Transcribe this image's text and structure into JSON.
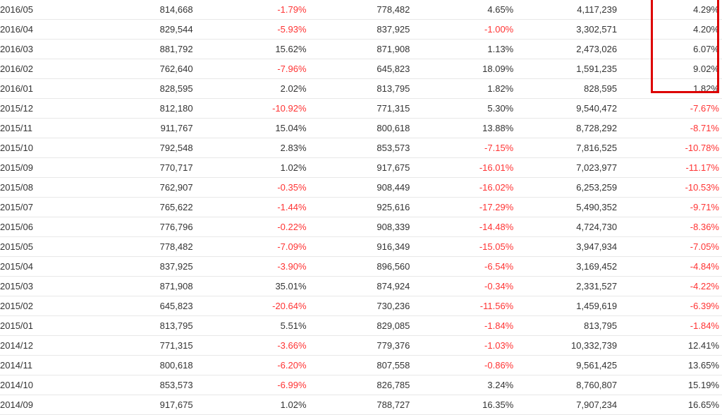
{
  "table": {
    "rows": [
      {
        "period": "2016/05",
        "v1": "814,668",
        "p1": "-1.79%",
        "v2": "778,482",
        "p2": "4.65%",
        "cum": "4,117,239",
        "p3": "4.29%"
      },
      {
        "period": "2016/04",
        "v1": "829,544",
        "p1": "-5.93%",
        "v2": "837,925",
        "p2": "-1.00%",
        "cum": "3,302,571",
        "p3": "4.20%"
      },
      {
        "period": "2016/03",
        "v1": "881,792",
        "p1": "15.62%",
        "v2": "871,908",
        "p2": "1.13%",
        "cum": "2,473,026",
        "p3": "6.07%"
      },
      {
        "period": "2016/02",
        "v1": "762,640",
        "p1": "-7.96%",
        "v2": "645,823",
        "p2": "18.09%",
        "cum": "1,591,235",
        "p3": "9.02%"
      },
      {
        "period": "2016/01",
        "v1": "828,595",
        "p1": "2.02%",
        "v2": "813,795",
        "p2": "1.82%",
        "cum": "828,595",
        "p3": "1.82%"
      },
      {
        "period": "2015/12",
        "v1": "812,180",
        "p1": "-10.92%",
        "v2": "771,315",
        "p2": "5.30%",
        "cum": "9,540,472",
        "p3": "-7.67%"
      },
      {
        "period": "2015/11",
        "v1": "911,767",
        "p1": "15.04%",
        "v2": "800,618",
        "p2": "13.88%",
        "cum": "8,728,292",
        "p3": "-8.71%"
      },
      {
        "period": "2015/10",
        "v1": "792,548",
        "p1": "2.83%",
        "v2": "853,573",
        "p2": "-7.15%",
        "cum": "7,816,525",
        "p3": "-10.78%"
      },
      {
        "period": "2015/09",
        "v1": "770,717",
        "p1": "1.02%",
        "v2": "917,675",
        "p2": "-16.01%",
        "cum": "7,023,977",
        "p3": "-11.17%"
      },
      {
        "period": "2015/08",
        "v1": "762,907",
        "p1": "-0.35%",
        "v2": "908,449",
        "p2": "-16.02%",
        "cum": "6,253,259",
        "p3": "-10.53%"
      },
      {
        "period": "2015/07",
        "v1": "765,622",
        "p1": "-1.44%",
        "v2": "925,616",
        "p2": "-17.29%",
        "cum": "5,490,352",
        "p3": "-9.71%"
      },
      {
        "period": "2015/06",
        "v1": "776,796",
        "p1": "-0.22%",
        "v2": "908,339",
        "p2": "-14.48%",
        "cum": "4,724,730",
        "p3": "-8.36%"
      },
      {
        "period": "2015/05",
        "v1": "778,482",
        "p1": "-7.09%",
        "v2": "916,349",
        "p2": "-15.05%",
        "cum": "3,947,934",
        "p3": "-7.05%"
      },
      {
        "period": "2015/04",
        "v1": "837,925",
        "p1": "-3.90%",
        "v2": "896,560",
        "p2": "-6.54%",
        "cum": "3,169,452",
        "p3": "-4.84%"
      },
      {
        "period": "2015/03",
        "v1": "871,908",
        "p1": "35.01%",
        "v2": "874,924",
        "p2": "-0.34%",
        "cum": "2,331,527",
        "p3": "-4.22%"
      },
      {
        "period": "2015/02",
        "v1": "645,823",
        "p1": "-20.64%",
        "v2": "730,236",
        "p2": "-11.56%",
        "cum": "1,459,619",
        "p3": "-6.39%"
      },
      {
        "period": "2015/01",
        "v1": "813,795",
        "p1": "5.51%",
        "v2": "829,085",
        "p2": "-1.84%",
        "cum": "813,795",
        "p3": "-1.84%"
      },
      {
        "period": "2014/12",
        "v1": "771,315",
        "p1": "-3.66%",
        "v2": "779,376",
        "p2": "-1.03%",
        "cum": "10,332,739",
        "p3": "12.41%"
      },
      {
        "period": "2014/11",
        "v1": "800,618",
        "p1": "-6.20%",
        "v2": "807,558",
        "p2": "-0.86%",
        "cum": "9,561,425",
        "p3": "13.65%"
      },
      {
        "period": "2014/10",
        "v1": "853,573",
        "p1": "-6.99%",
        "v2": "826,785",
        "p2": "3.24%",
        "cum": "8,760,807",
        "p3": "15.19%"
      },
      {
        "period": "2014/09",
        "v1": "917,675",
        "p1": "1.02%",
        "v2": "788,727",
        "p2": "16.35%",
        "cum": "7,907,234",
        "p3": "16.65%"
      }
    ]
  },
  "colors": {
    "negative": "#ff3333",
    "positive": "#333333",
    "highlight_border": "#dd0000",
    "row_border": "#e8e8e8"
  }
}
